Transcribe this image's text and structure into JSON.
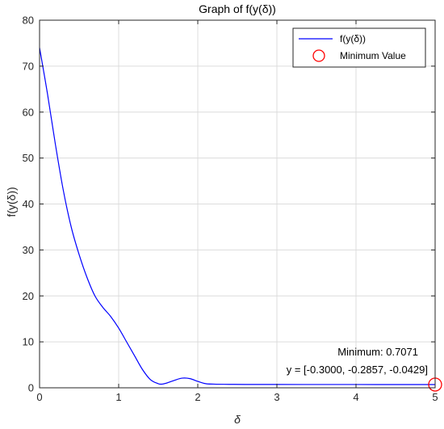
{
  "chart_data": {
    "type": "line",
    "title": "Graph of f(y(δ))",
    "xlabel": "δ",
    "ylabel": "f(y(δ))",
    "xlim": [
      0,
      5
    ],
    "ylim": [
      0,
      80
    ],
    "xticks": [
      "0",
      "1",
      "2",
      "3",
      "4",
      "5"
    ],
    "yticks": [
      "0",
      "10",
      "20",
      "30",
      "40",
      "50",
      "60",
      "70",
      "80"
    ],
    "grid": true,
    "legend_placement": "top-right",
    "series": [
      {
        "name": "f(y(δ))",
        "color": "#0000ff",
        "x": [
          0,
          0.1,
          0.2,
          0.3,
          0.4,
          0.5,
          0.6,
          0.7,
          0.8,
          0.9,
          1.0,
          1.1,
          1.2,
          1.3,
          1.4,
          1.5,
          1.55,
          1.6,
          1.7,
          1.8,
          1.9,
          2.0,
          2.1,
          2.2,
          2.4,
          2.6,
          3.0,
          3.5,
          4.0,
          4.5,
          5.0
        ],
        "y": [
          74,
          64,
          53,
          43,
          35,
          29,
          24,
          20,
          17.5,
          15.5,
          13,
          10,
          7,
          4,
          1.8,
          0.9,
          0.8,
          1.0,
          1.6,
          2.1,
          2.0,
          1.4,
          0.9,
          0.8,
          0.75,
          0.73,
          0.72,
          0.715,
          0.71,
          0.708,
          0.7071
        ]
      }
    ],
    "minimum_marker": {
      "name": "Minimum Value",
      "x": 5.0,
      "y": 0.7071,
      "color": "#ff0000"
    },
    "annotations": [
      "Minimum: 0.7071",
      "y = [-0.3000, -0.2857, -0.0429]"
    ]
  }
}
